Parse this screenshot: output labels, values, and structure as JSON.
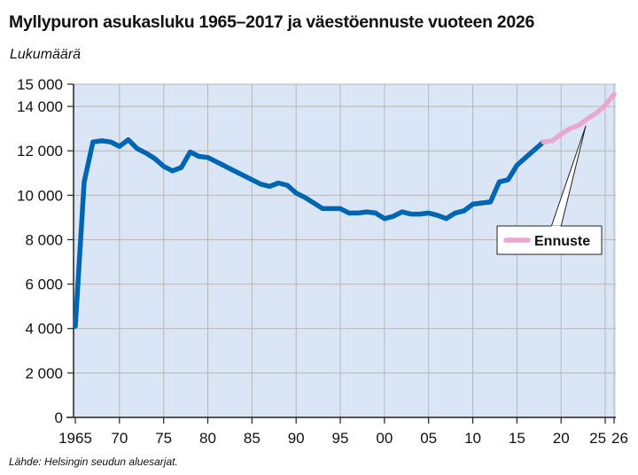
{
  "title": "Myllypuron asukasluku 1965–2017 ja väestöennuste vuoteen 2026",
  "unit_label": "Lukumäärä",
  "source": "Lähde: Helsingin seudun aluesarjat.",
  "colors": {
    "plot_bg": "#dae6f5",
    "grid": "#b7b7b7",
    "history_line": "#0066b3",
    "forecast_line": "#eaa7d0",
    "axis": "#222222"
  },
  "chart_data": {
    "type": "line",
    "title": "Myllypuron asukasluku 1965–2017 ja väestöennuste vuoteen 2026",
    "ylabel": "Lukumäärä",
    "xlabel": "",
    "xlim": [
      1964.8,
      2026.2
    ],
    "ylim": [
      0,
      15000
    ],
    "y_ticks": [
      0,
      2000,
      4000,
      6000,
      8000,
      10000,
      12000,
      14000,
      15000
    ],
    "y_tick_labels": [
      "0",
      "2 000",
      "4 000",
      "6 000",
      "8 000",
      "10 000",
      "12 000",
      "14 000",
      "15 000"
    ],
    "x_ticks": [
      1965,
      1970,
      1975,
      1980,
      1985,
      1990,
      1995,
      2000,
      2005,
      2010,
      2015,
      2020,
      2025,
      2026
    ],
    "x_tick_labels": [
      "1965",
      "70",
      "75",
      "80",
      "85",
      "90",
      "95",
      "00",
      "05",
      "10",
      "15",
      "20",
      "25",
      "26"
    ],
    "grid": "vertical and horizontal",
    "series": [
      {
        "name": "",
        "x": [
          1965,
          1966,
          1967,
          1968,
          1969,
          1970,
          1971,
          1972,
          1973,
          1974,
          1975,
          1976,
          1977,
          1978,
          1979,
          1980,
          1981,
          1982,
          1983,
          1984,
          1985,
          1986,
          1987,
          1988,
          1989,
          1990,
          1991,
          1992,
          1993,
          1994,
          1995,
          1996,
          1997,
          1998,
          1999,
          2000,
          2001,
          2002,
          2003,
          2004,
          2005,
          2006,
          2007,
          2008,
          2009,
          2010,
          2011,
          2012,
          2013,
          2014,
          2015,
          2016,
          2017,
          2018
        ],
        "y": [
          4100,
          10600,
          12400,
          12450,
          12400,
          12200,
          12500,
          12100,
          11900,
          11650,
          11300,
          11100,
          11250,
          11950,
          11750,
          11700,
          11500,
          11300,
          11100,
          10900,
          10700,
          10500,
          10400,
          10550,
          10450,
          10100,
          9900,
          9650,
          9400,
          9400,
          9400,
          9200,
          9200,
          9250,
          9200,
          8950,
          9050,
          9250,
          9150,
          9150,
          9200,
          9100,
          8950,
          9200,
          9300,
          9600,
          9650,
          9700,
          10600,
          10700,
          11350,
          11700,
          12050,
          12400
        ]
      },
      {
        "name": "Ennuste",
        "x": [
          2018,
          2019,
          2020,
          2021,
          2022,
          2023,
          2024,
          2025,
          2026
        ],
        "y": [
          12400,
          12450,
          12750,
          13000,
          13150,
          13450,
          13700,
          14050,
          14550
        ]
      }
    ],
    "legend": {
      "position": "right",
      "label": "Ennuste"
    }
  }
}
